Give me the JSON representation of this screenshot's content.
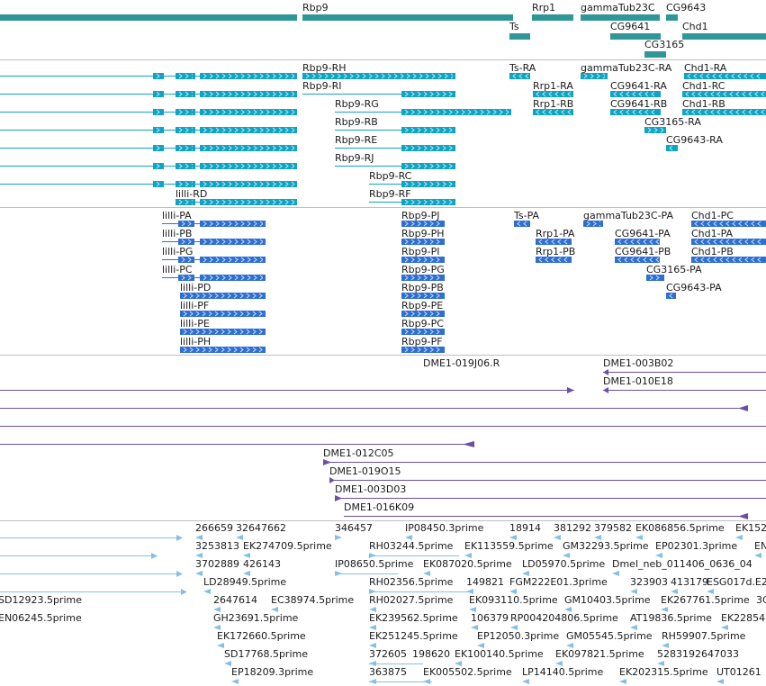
{
  "colors": {
    "gene": "#2f9797",
    "transcript": "#10a3c4",
    "transcript_arrow": "#b9ecf6",
    "mrna": "#2f6fd1",
    "mrna_arrow": "#c6dcff",
    "clone": "#6c4ea8",
    "est": "#86bfe6",
    "divider": "#bfbfbf"
  },
  "tracks": {
    "genes": {
      "labels": [
        "Rbp9",
        "Rrp1",
        "gammaTub23C",
        "CG9643",
        "Ts",
        "CG9641",
        "Chd1",
        "CG3165"
      ]
    },
    "transcripts": {
      "labels": [
        "Rbp9-RH",
        "Ts-RA",
        "gammaTub23C-RA",
        "Chd1-RA",
        "Rbp9-RI",
        "Rrp1-RA",
        "CG9641-RA",
        "Chd1-RC",
        "Rbp9-RG",
        "Rrp1-RB",
        "CG9641-RB",
        "Chd1-RB",
        "Rbp9-RB",
        "CG3165-RA",
        "Rbp9-RE",
        "CG9643-RA",
        "Rbp9-RJ",
        "Rbp9-RC",
        "lilli-RD",
        "Rbp9-RF"
      ]
    },
    "mrnas": {
      "labels": [
        "lilli-PA",
        "Rbp9-PJ",
        "Ts-PA",
        "gammaTub23C-PA",
        "Chd1-PC",
        "lilli-PB",
        "Rbp9-PH",
        "Rrp1-PA",
        "CG9641-PA",
        "Chd1-PA",
        "lilli-PG",
        "Rbp9-PI",
        "Rrp1-PB",
        "CG9641-PB",
        "Chd1-PB",
        "lilli-PC",
        "Rbp9-PG",
        "CG3165-PA",
        "lilli-PD",
        "Rbp9-PB",
        "CG9643-PA",
        "lilli-PF",
        "Rbp9-PE",
        "lilli-PE",
        "Rbp9-PC",
        "lilli-PH",
        "Rbp9-PF"
      ]
    },
    "clones": {
      "labels": [
        "DME1-019J06.R",
        "DME1-003B02",
        "DME1-010E18",
        "DME1-012C05",
        "DME1-019O15",
        "DME1-003D03",
        "DME1-016K09"
      ]
    },
    "ests": {
      "labels": [
        "266659",
        "32647662",
        "346457",
        "IP08450.3prime",
        "18914",
        "381292",
        "379582",
        "EK086856.5prime",
        "EK152",
        "3253813",
        "EK274709.5prime",
        "RH03244.5prime",
        "EK113559.5prime",
        "GM32293.5prime",
        "EP02301.3prime",
        "EN",
        "3702889",
        "426143",
        "IP08650.5prime",
        "EK087020.5prime",
        "LD05970.5prime",
        "Dmel_neb_011406_0636_04",
        "LD28949.5prime",
        "RH02356.5prime",
        "149821",
        "FGM222E01.3prime",
        "323903",
        "413179",
        "ESG017d.E2",
        "SD12923.5prime",
        "2647614",
        "EC38974.5prime",
        "RH02027.5prime",
        "EK093110.5prime",
        "GM10403.5prime",
        "EK267761.5prime",
        "3C",
        "EN06245.5prime",
        "GH23691.5prime",
        "EK239562.5prime",
        "106379",
        "RP004204806.5prime",
        "AT19836.5prime",
        "EK22854",
        "EK172660.5prime",
        "EK251245.5prime",
        "EP12050.3prime",
        "GM05545.5prime",
        "RH59907.5prime",
        "SD17768.5prime",
        "372605",
        "198620",
        "EK100140.5prime",
        "EK097821.5prime",
        "5283192647033",
        "EP18209.3prime",
        "363875",
        "EK005502.5prime",
        "LP14140.5prime",
        "EK202315.5prime",
        "UT01261"
      ]
    }
  }
}
